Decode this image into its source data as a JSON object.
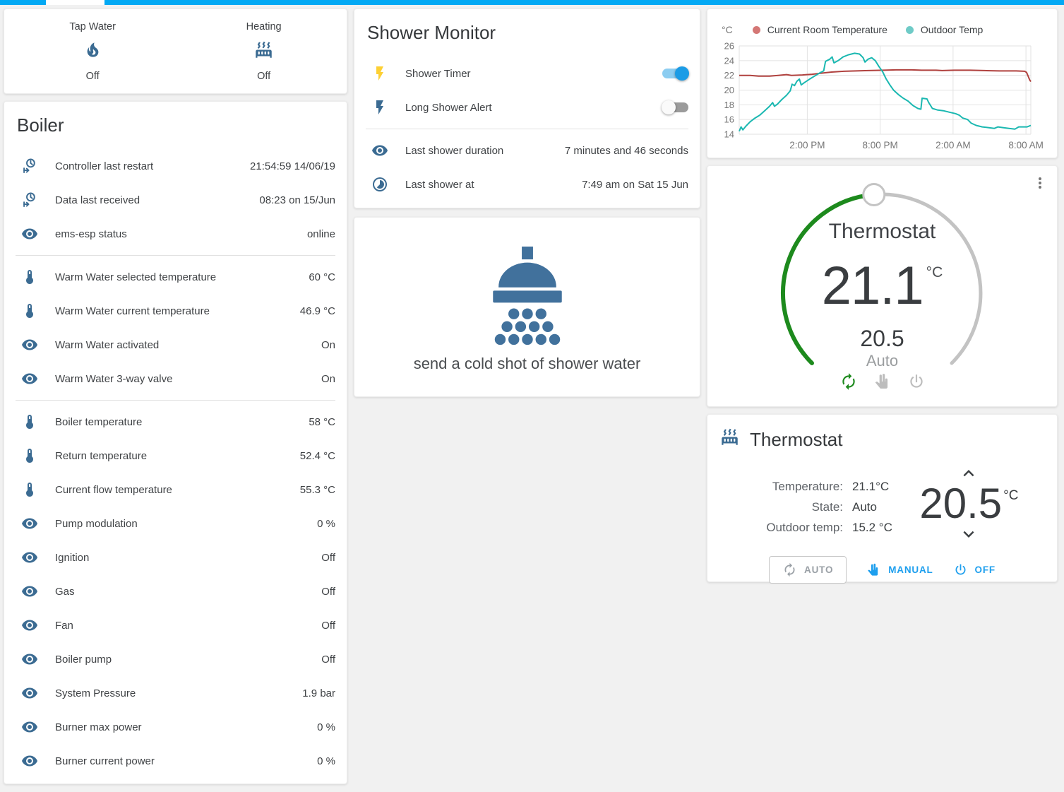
{
  "colors": {
    "accent": "#03a9f4",
    "icon_blue": "#3b6b92",
    "bolt_yellow": "#fdd033",
    "dial_active": "#1d8a1d",
    "dial_inactive": "#c3c3c3",
    "button_blue": "#1e9fee",
    "muted_gray": "#bdbdbd"
  },
  "glance": {
    "items": [
      {
        "label": "Tap Water",
        "icon": "fire-icon",
        "state": "Off"
      },
      {
        "label": "Heating",
        "icon": "radiator-icon",
        "state": "Off"
      }
    ]
  },
  "boiler": {
    "title": "Boiler",
    "sections": [
      [
        {
          "icon": "clock-start-icon",
          "label": "Controller last restart",
          "value": "21:54:59 14/06/19"
        },
        {
          "icon": "clock-start-icon",
          "label": "Data last received",
          "value": "08:23 on 15/Jun"
        },
        {
          "icon": "eye-icon",
          "label": "ems-esp status",
          "value": "online"
        }
      ],
      [
        {
          "icon": "thermometer-icon",
          "label": "Warm Water selected temperature",
          "value": "60 °C"
        },
        {
          "icon": "thermometer-icon",
          "label": "Warm Water current temperature",
          "value": "46.9 °C"
        },
        {
          "icon": "eye-icon",
          "label": "Warm Water activated",
          "value": "On"
        },
        {
          "icon": "eye-icon",
          "label": "Warm Water 3-way valve",
          "value": "On"
        }
      ],
      [
        {
          "icon": "thermometer-icon",
          "label": "Boiler temperature",
          "value": "58 °C"
        },
        {
          "icon": "thermometer-icon",
          "label": "Return temperature",
          "value": "52.4 °C"
        },
        {
          "icon": "thermometer-icon",
          "label": "Current flow temperature",
          "value": "55.3 °C"
        },
        {
          "icon": "eye-icon",
          "label": "Pump modulation",
          "value": "0 %"
        },
        {
          "icon": "eye-icon",
          "label": "Ignition",
          "value": "Off"
        },
        {
          "icon": "eye-icon",
          "label": "Gas",
          "value": "Off"
        },
        {
          "icon": "eye-icon",
          "label": "Fan",
          "value": "Off"
        },
        {
          "icon": "eye-icon",
          "label": "Boiler pump",
          "value": "Off"
        },
        {
          "icon": "eye-icon",
          "label": "System Pressure",
          "value": "1.9 bar"
        },
        {
          "icon": "eye-icon",
          "label": "Burner max power",
          "value": "0 %"
        },
        {
          "icon": "eye-icon",
          "label": "Burner current power",
          "value": "0 %"
        }
      ]
    ]
  },
  "shower_monitor": {
    "title": "Shower Monitor",
    "toggles": [
      {
        "icon": "flash-icon",
        "icon_color": "#fdd033",
        "label": "Shower Timer",
        "state": "on"
      },
      {
        "icon": "flash-icon",
        "icon_color": "#3b6b92",
        "label": "Long Shower Alert",
        "state": "off"
      }
    ],
    "info": [
      {
        "icon": "eye-icon",
        "label": "Last shower duration",
        "value": "7 minutes and 46 seconds"
      },
      {
        "icon": "timelapse-icon",
        "label": "Last shower at",
        "value": "7:49 am on Sat 15 Jun"
      }
    ]
  },
  "shower_action": {
    "icon": "shower-head-icon",
    "label": "send a cold shot of shower water"
  },
  "chart_data": {
    "type": "line",
    "title": "",
    "ylabel_unit": "°C",
    "ylim": [
      14,
      26
    ],
    "ytick_step": 2,
    "x_range_hours": [
      8.4,
      32.4
    ],
    "xticks": [
      {
        "t": 14,
        "label": "2:00 PM"
      },
      {
        "t": 20,
        "label": "8:00 PM"
      },
      {
        "t": 26,
        "label": "2:00 AM"
      },
      {
        "t": 32,
        "label": "8:00 AM"
      }
    ],
    "grid": true,
    "legend_position": "top",
    "series": [
      {
        "name": "Current Room Temperature",
        "color": "#b0413e",
        "legend_color": "#d47775",
        "points": [
          [
            8.4,
            22.0
          ],
          [
            9.3,
            22.0
          ],
          [
            10.0,
            21.9
          ],
          [
            10.9,
            21.9
          ],
          [
            11.6,
            22.0
          ],
          [
            12.3,
            22.1
          ],
          [
            12.7,
            22.0
          ],
          [
            13.6,
            22.05
          ],
          [
            14.4,
            22.15
          ],
          [
            15.2,
            22.3
          ],
          [
            16.0,
            22.45
          ],
          [
            17.0,
            22.55
          ],
          [
            18.0,
            22.6
          ],
          [
            19.0,
            22.65
          ],
          [
            20.3,
            22.7
          ],
          [
            21.3,
            22.75
          ],
          [
            22.6,
            22.75
          ],
          [
            23.4,
            22.7
          ],
          [
            24.6,
            22.7
          ],
          [
            25.1,
            22.65
          ],
          [
            26.1,
            22.7
          ],
          [
            27.4,
            22.7
          ],
          [
            28.6,
            22.65
          ],
          [
            29.8,
            22.6
          ],
          [
            31.2,
            22.6
          ],
          [
            31.9,
            22.55
          ],
          [
            32.05,
            22.4
          ],
          [
            32.2,
            21.8
          ],
          [
            32.3,
            21.4
          ],
          [
            32.4,
            21.15
          ]
        ]
      },
      {
        "name": "Outdoor Temp",
        "color": "#1bb8b1",
        "legend_color": "#6fcbc7",
        "points": [
          [
            8.4,
            14.4
          ],
          [
            8.55,
            15.0
          ],
          [
            8.7,
            14.6
          ],
          [
            8.95,
            15.1
          ],
          [
            9.3,
            15.7
          ],
          [
            9.7,
            16.2
          ],
          [
            10.1,
            16.6
          ],
          [
            10.5,
            17.2
          ],
          [
            10.9,
            17.8
          ],
          [
            11.15,
            18.3
          ],
          [
            11.3,
            17.8
          ],
          [
            11.55,
            18.1
          ],
          [
            11.9,
            18.7
          ],
          [
            12.3,
            19.3
          ],
          [
            12.6,
            19.9
          ],
          [
            12.75,
            20.8
          ],
          [
            12.95,
            20.6
          ],
          [
            13.15,
            21.2
          ],
          [
            13.35,
            21.5
          ],
          [
            13.5,
            20.7
          ],
          [
            13.75,
            21.0
          ],
          [
            14.2,
            21.5
          ],
          [
            14.7,
            22.0
          ],
          [
            15.1,
            22.4
          ],
          [
            15.35,
            22.6
          ],
          [
            15.5,
            23.9
          ],
          [
            15.85,
            24.2
          ],
          [
            16.05,
            24.5
          ],
          [
            16.2,
            23.7
          ],
          [
            16.55,
            24.0
          ],
          [
            16.95,
            24.5
          ],
          [
            17.4,
            24.8
          ],
          [
            17.9,
            25.0
          ],
          [
            18.3,
            24.9
          ],
          [
            18.6,
            24.4
          ],
          [
            18.75,
            23.8
          ],
          [
            19.0,
            24.2
          ],
          [
            19.3,
            24.4
          ],
          [
            19.6,
            24.0
          ],
          [
            19.9,
            23.2
          ],
          [
            20.2,
            22.5
          ],
          [
            20.5,
            21.5
          ],
          [
            20.8,
            20.7
          ],
          [
            21.1,
            20.0
          ],
          [
            21.5,
            19.4
          ],
          [
            21.9,
            18.9
          ],
          [
            22.3,
            18.5
          ],
          [
            22.7,
            17.9
          ],
          [
            23.1,
            17.5
          ],
          [
            23.35,
            17.4
          ],
          [
            23.45,
            18.9
          ],
          [
            23.85,
            18.8
          ],
          [
            24.0,
            18.3
          ],
          [
            24.3,
            17.5
          ],
          [
            24.7,
            17.3
          ],
          [
            25.2,
            17.2
          ],
          [
            25.7,
            17.0
          ],
          [
            26.2,
            16.8
          ],
          [
            26.5,
            16.6
          ],
          [
            26.8,
            16.2
          ],
          [
            27.2,
            16.0
          ],
          [
            27.5,
            15.5
          ],
          [
            27.9,
            15.2
          ],
          [
            28.4,
            15.0
          ],
          [
            28.9,
            14.9
          ],
          [
            29.4,
            14.8
          ],
          [
            29.7,
            15.0
          ],
          [
            30.1,
            14.9
          ],
          [
            30.6,
            14.8
          ],
          [
            31.1,
            14.7
          ],
          [
            31.4,
            15.0
          ],
          [
            31.8,
            15.0
          ],
          [
            32.1,
            15.0
          ],
          [
            32.4,
            15.2
          ]
        ]
      }
    ]
  },
  "dial": {
    "title": "Thermostat",
    "current": "21.1",
    "unit": "°C",
    "target": "20.5",
    "mode": "Auto",
    "modes": [
      {
        "name": "auto",
        "icon": "autorenew-icon",
        "active": true
      },
      {
        "name": "manual",
        "icon": "hand-icon",
        "active": false
      },
      {
        "name": "off",
        "icon": "power-icon",
        "active": false
      }
    ]
  },
  "thermostat": {
    "title": "Thermostat",
    "icon": "radiator-icon",
    "info": [
      {
        "label": "Temperature:",
        "value": "21.1°C"
      },
      {
        "label": "State:",
        "value": "Auto"
      },
      {
        "label": "Outdoor temp:",
        "value": "15.2 °C"
      }
    ],
    "target": "20.5",
    "unit": "°C",
    "buttons": [
      {
        "label": "AUTO",
        "icon": "autorenew-icon",
        "style": "outlined"
      },
      {
        "label": "MANUAL",
        "icon": "hand-icon",
        "style": "text"
      },
      {
        "label": "OFF",
        "icon": "power-icon",
        "style": "text"
      }
    ]
  }
}
